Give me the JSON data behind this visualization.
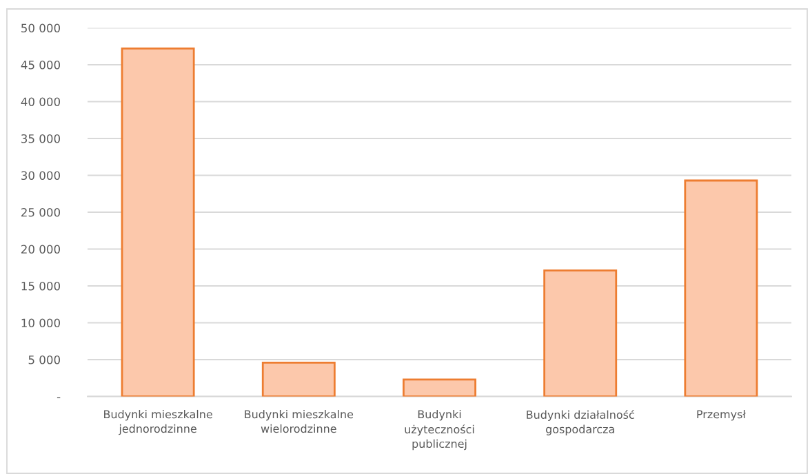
{
  "chart_data": {
    "type": "bar",
    "categories": [
      "Budynki mieszkalne\njednorodzinne",
      "Budynki mieszkalne\nwielorodzinne",
      "Budynki\nużyteczności\npublicznej",
      "Budynki działalność\ngospodarcza",
      "Przemysł"
    ],
    "values": [
      47200,
      4600,
      2300,
      17100,
      29300
    ],
    "color": "#fcc8ab",
    "ylim": [
      0,
      50000
    ],
    "yticks": [
      {
        "value": 0,
        "label": "-"
      },
      {
        "value": 5000,
        "label": "5 000"
      },
      {
        "value": 10000,
        "label": "10 000"
      },
      {
        "value": 15000,
        "label": "15 000"
      },
      {
        "value": 20000,
        "label": "20 000"
      },
      {
        "value": 25000,
        "label": "25 000"
      },
      {
        "value": 30000,
        "label": "30 000"
      },
      {
        "value": 35000,
        "label": "35 000"
      },
      {
        "value": 40000,
        "label": "40 000"
      },
      {
        "value": 45000,
        "label": "45 000"
      },
      {
        "value": 50000,
        "label": "50 000"
      }
    ],
    "grid": "y"
  }
}
